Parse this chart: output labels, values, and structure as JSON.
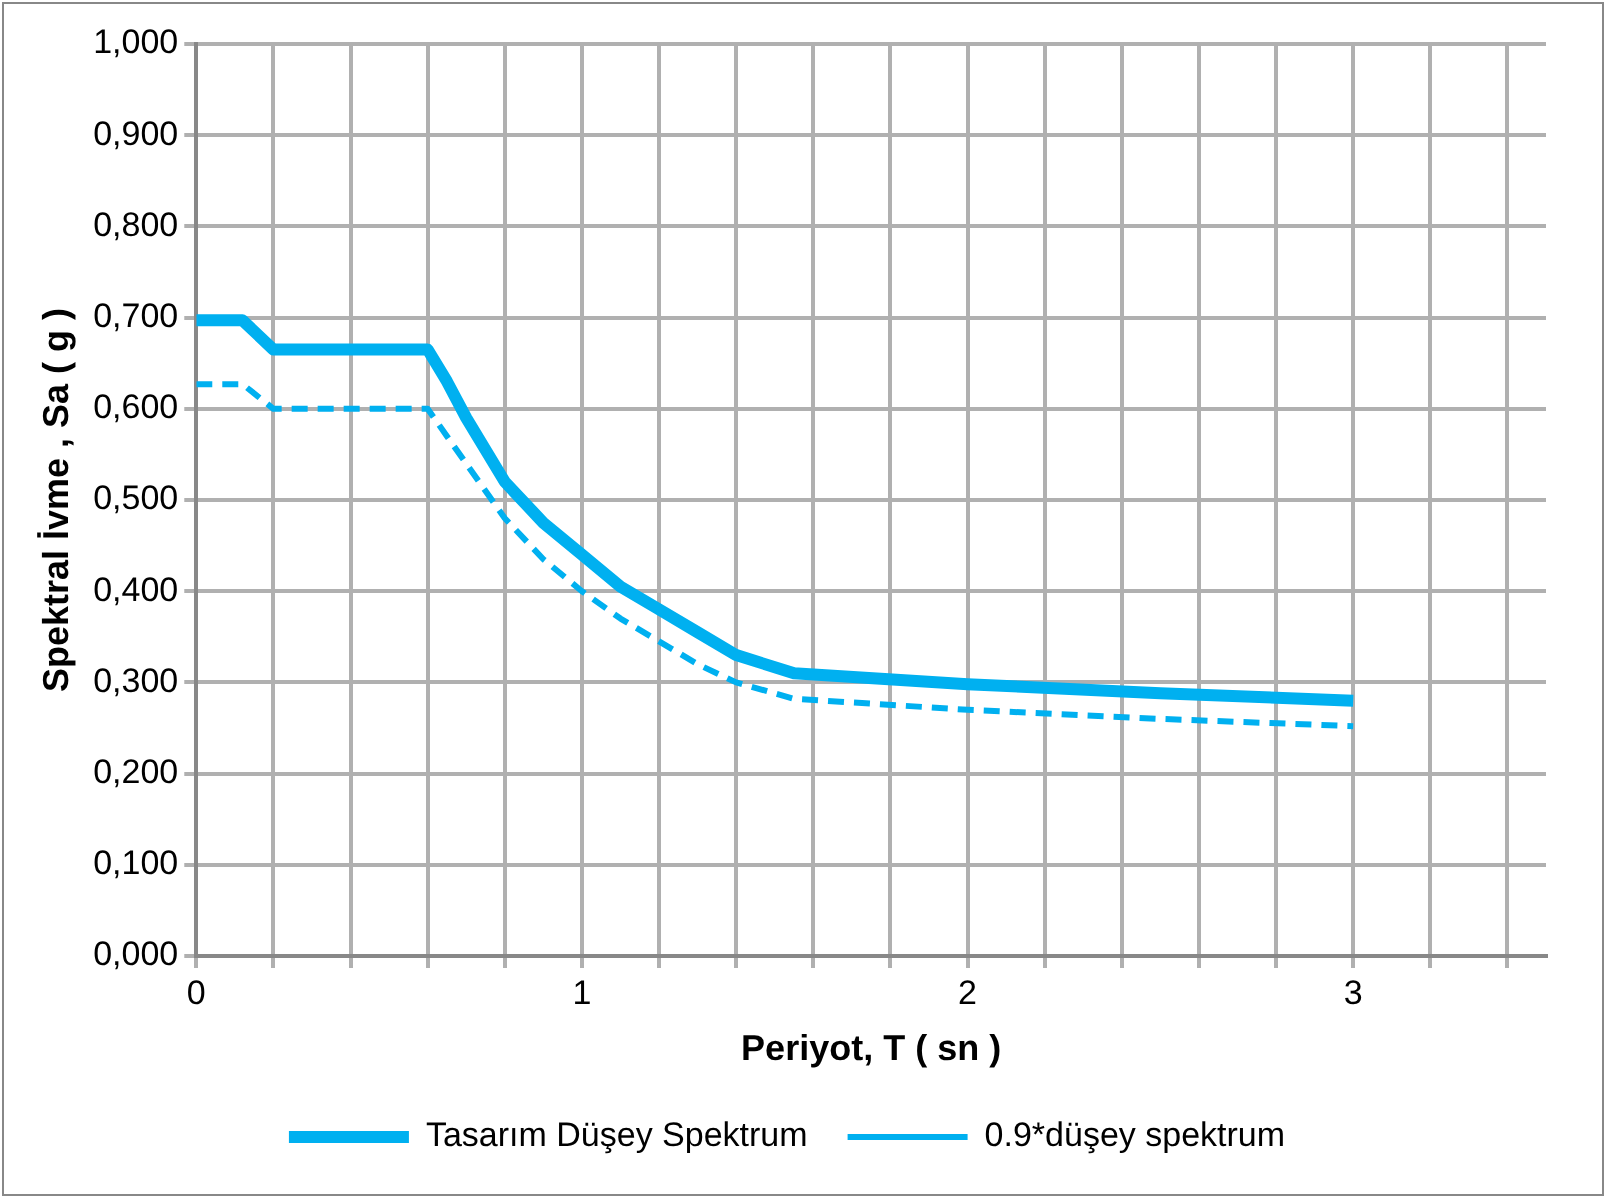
{
  "chart_data": {
    "type": "line",
    "xlabel": "Periyot, T ( sn )",
    "ylabel": "Spektral İvme , Sa ( g )",
    "xlim": [
      0,
      3.5
    ],
    "xticks": [
      0,
      {
        "value": 0.2,
        "label": null
      },
      {
        "value": 0.4,
        "label": null
      },
      {
        "value": 0.6,
        "label": null
      },
      {
        "value": 0.8,
        "label": null
      },
      1,
      {
        "value": 1.2,
        "label": null
      },
      {
        "value": 1.4,
        "label": null
      },
      {
        "value": 1.6,
        "label": null
      },
      {
        "value": 1.8,
        "label": null
      },
      2,
      {
        "value": 2.2,
        "label": null
      },
      {
        "value": 2.4,
        "label": null
      },
      {
        "value": 2.6,
        "label": null
      },
      {
        "value": 2.8,
        "label": null
      },
      3,
      {
        "value": 3.2,
        "label": null
      },
      {
        "value": 3.4,
        "label": null
      }
    ],
    "ylim": [
      0,
      1
    ],
    "yticks": [
      {
        "value": 0,
        "label": "0,000"
      },
      {
        "value": 0.1,
        "label": "0,100"
      },
      {
        "value": 0.2,
        "label": "0,200"
      },
      {
        "value": 0.3,
        "label": "0,300"
      },
      {
        "value": 0.4,
        "label": "0,400"
      },
      {
        "value": 0.5,
        "label": "0,500"
      },
      {
        "value": 0.6,
        "label": "0,600"
      },
      {
        "value": 0.7,
        "label": "0,700"
      },
      {
        "value": 0.8,
        "label": "0,800"
      },
      {
        "value": 0.9,
        "label": "0,900"
      },
      {
        "value": 1,
        "label": "1,000"
      }
    ],
    "grid": true,
    "legend": "bottom",
    "marker": "none",
    "series": [
      {
        "name": "Tasarım Düşey Spektrum",
        "color": "#00b0f0",
        "line_style": "solid",
        "x": [
          0,
          0.12,
          0.2,
          0.6,
          0.65,
          0.7,
          0.8,
          0.9,
          1.0,
          1.1,
          1.2,
          1.3,
          1.4,
          1.55,
          2,
          2.5,
          3
        ],
        "values": [
          0.697,
          0.697,
          0.665,
          0.665,
          0.63,
          0.59,
          0.52,
          0.475,
          0.44,
          0.405,
          0.38,
          0.355,
          0.33,
          0.31,
          0.298,
          0.288,
          0.28
        ]
      },
      {
        "name": "0.9*düşey spektrum",
        "color": "#00b0f0",
        "line_style": "dashed",
        "x": [
          0,
          0.12,
          0.2,
          0.6,
          0.65,
          0.7,
          0.8,
          0.9,
          1.0,
          1.1,
          1.2,
          1.3,
          1.4,
          1.55,
          2,
          2.5,
          3
        ],
        "values": [
          0.627,
          0.627,
          0.6,
          0.6,
          0.57,
          0.54,
          0.48,
          0.435,
          0.4,
          0.37,
          0.345,
          0.32,
          0.3,
          0.282,
          0.27,
          0.26,
          0.252
        ]
      }
    ]
  }
}
